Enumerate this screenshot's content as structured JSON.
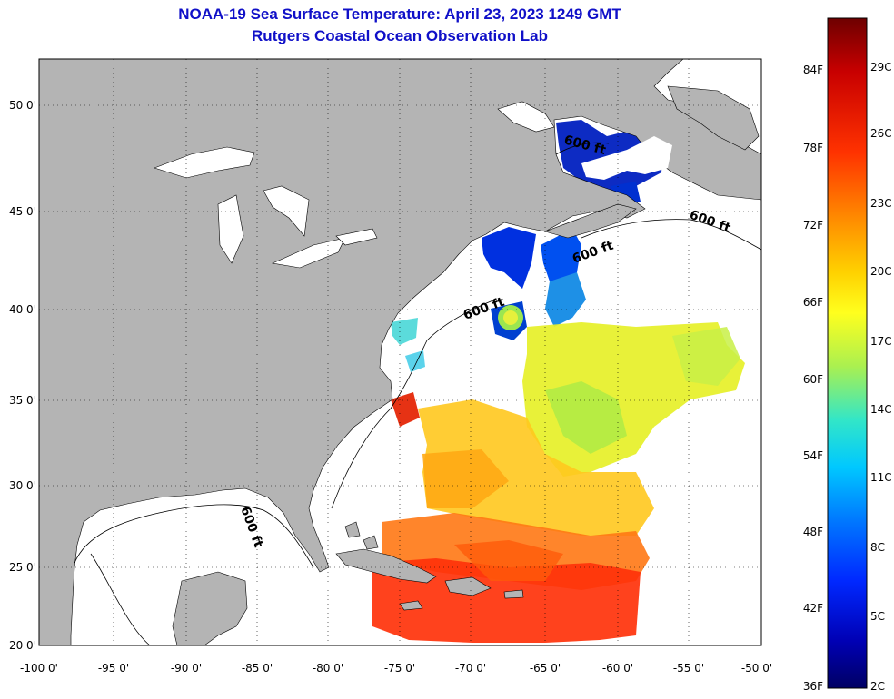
{
  "title": "NOAA-19 Sea Surface Temperature:  April 23, 2023 1249 GMT",
  "subtitle": "Rutgers Coastal Ocean Observation Lab",
  "map": {
    "lon_range": [
      -100,
      -50
    ],
    "lat_range": [
      20,
      52
    ],
    "lon_ticks": [
      "-100 0'",
      "-95 0'",
      "-90 0'",
      "-85 0'",
      "-80 0'",
      "-75 0'",
      "-70 0'",
      "-65 0'",
      "-60 0'",
      "-55 0'",
      "-50 0'"
    ],
    "lat_ticks": [
      "50 0'",
      "45 0'",
      "40 0'",
      "35 0'",
      "30 0'",
      "25 0'",
      "20 0'"
    ],
    "grid": "dotted",
    "land_color": "#b4b4b4",
    "isobath_label": "600 ft",
    "isobath_labels": [
      "600 ft",
      "600 ft",
      "600 ft",
      "600 ft",
      "600 ft"
    ]
  },
  "colorbar": {
    "fahrenheit_labels": [
      "84F",
      "78F",
      "72F",
      "66F",
      "60F",
      "54F",
      "48F",
      "42F",
      "36F"
    ],
    "celsius_labels": [
      "29C",
      "26C",
      "23C",
      "20C",
      "17C",
      "14C",
      "11C",
      "8C",
      "5C",
      "2C"
    ],
    "colors": [
      "#6e0000",
      "#c80000",
      "#ff3200",
      "#ff8c00",
      "#ffd200",
      "#ffff1e",
      "#aaf050",
      "#32e6c8",
      "#00c8ff",
      "#0078ff",
      "#0028ff",
      "#0000b4",
      "#000064"
    ]
  }
}
